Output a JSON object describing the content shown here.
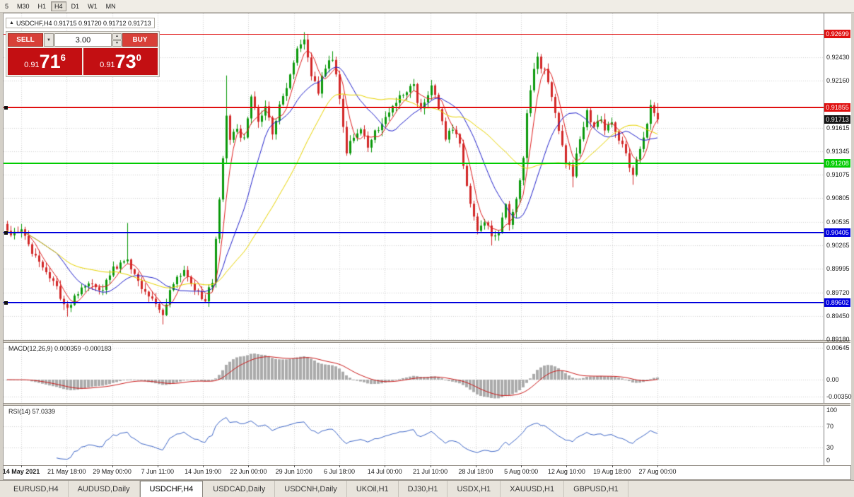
{
  "icons": {
    "trend_arrow": "▲",
    "dropdown_arrow": "▼",
    "spin_up": "▲",
    "spin_down": "▼"
  },
  "toolbar": {
    "timeframes": [
      {
        "label": "5"
      },
      {
        "label": "M30"
      },
      {
        "label": "H1"
      },
      {
        "label": "H4",
        "active": true
      },
      {
        "label": "D1"
      },
      {
        "label": "W1"
      },
      {
        "label": "MN"
      }
    ]
  },
  "symbol_info": {
    "text": "USDCHF,H4 0.91715 0.91720 0.91712 0.91713"
  },
  "trade_panel": {
    "sell_label": "SELL",
    "buy_label": "BUY",
    "volume": "3.00",
    "sell_price": {
      "prefix": "0.91",
      "big": "71",
      "sup": "6"
    },
    "buy_price": {
      "prefix": "0.91",
      "big": "73",
      "sup": "0"
    }
  },
  "chart_data": {
    "type": "candlestick",
    "symbol": "USDCHF",
    "timeframe": "H4",
    "current_price": "0.91713",
    "current_price_value": 0.91713,
    "up_color": "#0c9a0c",
    "down_color": "#d22828",
    "grid_color": "#cfcfcf",
    "price_axis_ticks": [
      {
        "text": "0.92430",
        "price": 0.9243
      },
      {
        "text": "0.92160",
        "price": 0.9216
      },
      {
        "text": "0.91615",
        "price": 0.91615
      },
      {
        "text": "0.91345",
        "price": 0.91345
      },
      {
        "text": "0.91075",
        "price": 0.91075
      },
      {
        "text": "0.90805",
        "price": 0.90805
      },
      {
        "text": "0.90535",
        "price": 0.90535
      },
      {
        "text": "0.90265",
        "price": 0.90265
      },
      {
        "text": "0.89995",
        "price": 0.89995
      },
      {
        "text": "0.89720",
        "price": 0.8972
      },
      {
        "text": "0.89450",
        "price": 0.8945
      },
      {
        "text": "0.89180",
        "price": 0.8918
      }
    ],
    "hlines": [
      {
        "price": 0.92699,
        "label": "0.92699",
        "color": "#e01010",
        "type": "resistance",
        "weight": 1,
        "marker": false
      },
      {
        "price": 0.91855,
        "label": "0.91855",
        "color": "#e01010",
        "type": "resistance",
        "weight": 2,
        "marker": true
      },
      {
        "price": 0.91208,
        "label": "0.91208",
        "color": "#00cc00",
        "type": "support",
        "weight": 2,
        "marker": false
      },
      {
        "price": 0.90405,
        "label": "0.90405",
        "color": "#0000dd",
        "type": "support",
        "weight": 2,
        "marker": true
      },
      {
        "price": 0.89602,
        "label": "0.89602",
        "color": "#0000dd",
        "type": "support",
        "weight": 2,
        "marker": true
      }
    ],
    "time_labels": [
      "14 May 2021",
      "21 May 18:00",
      "29 May 00:00",
      "7 Jun 11:00",
      "14 Jun 19:00",
      "22 Jun 00:00",
      "29 Jun 10:00",
      "6 Jul 18:00",
      "14 Jul 00:00",
      "21 Jul 10:00",
      "28 Jul 18:00",
      "5 Aug 00:00",
      "12 Aug 10:00",
      "19 Aug 18:00",
      "27 Aug 00:00"
    ],
    "candles_count": 185,
    "price_path": [
      [
        0,
        0.904
      ],
      [
        4,
        0.9045
      ],
      [
        8,
        0.901
      ],
      [
        12,
        0.8992
      ],
      [
        17,
        0.8952
      ],
      [
        20,
        0.897
      ],
      [
        23,
        0.8985
      ],
      [
        26,
        0.8972
      ],
      [
        30,
        0.8998
      ],
      [
        34,
        0.901
      ],
      [
        36,
        0.8992
      ],
      [
        40,
        0.8968
      ],
      [
        44,
        0.8948
      ],
      [
        47,
        0.8985
      ],
      [
        50,
        0.8995
      ],
      [
        53,
        0.8975
      ],
      [
        56,
        0.8963
      ],
      [
        58,
        0.8985
      ],
      [
        60,
        0.908
      ],
      [
        62,
        0.9175
      ],
      [
        63,
        0.915
      ],
      [
        65,
        0.916
      ],
      [
        67,
        0.9148
      ],
      [
        69,
        0.9195
      ],
      [
        71,
        0.917
      ],
      [
        73,
        0.919
      ],
      [
        75,
        0.9158
      ],
      [
        77,
        0.919
      ],
      [
        80,
        0.922
      ],
      [
        82,
        0.925
      ],
      [
        84,
        0.9266
      ],
      [
        86,
        0.9225
      ],
      [
        88,
        0.9205
      ],
      [
        90,
        0.923
      ],
      [
        92,
        0.9243
      ],
      [
        94,
        0.9195
      ],
      [
        96,
        0.9135
      ],
      [
        98,
        0.915
      ],
      [
        100,
        0.9162
      ],
      [
        102,
        0.914
      ],
      [
        104,
        0.9155
      ],
      [
        106,
        0.917
      ],
      [
        108,
        0.918
      ],
      [
        110,
        0.919
      ],
      [
        112,
        0.92
      ],
      [
        115,
        0.9208
      ],
      [
        117,
        0.918
      ],
      [
        119,
        0.9195
      ],
      [
        120,
        0.921
      ],
      [
        123,
        0.917
      ],
      [
        124,
        0.9152
      ],
      [
        127,
        0.9158
      ],
      [
        129,
        0.912
      ],
      [
        131,
        0.907
      ],
      [
        133,
        0.9045
      ],
      [
        135,
        0.9055
      ],
      [
        137,
        0.9035
      ],
      [
        139,
        0.9045
      ],
      [
        141,
        0.9075
      ],
      [
        142,
        0.9052
      ],
      [
        144,
        0.908
      ],
      [
        146,
        0.913
      ],
      [
        147,
        0.9175
      ],
      [
        149,
        0.923
      ],
      [
        150,
        0.924
      ],
      [
        152,
        0.9225
      ],
      [
        154,
        0.92
      ],
      [
        156,
        0.916
      ],
      [
        158,
        0.9125
      ],
      [
        160,
        0.9108
      ],
      [
        162,
        0.915
      ],
      [
        164,
        0.9183
      ],
      [
        166,
        0.916
      ],
      [
        168,
        0.9175
      ],
      [
        169,
        0.9155
      ],
      [
        171,
        0.917
      ],
      [
        173,
        0.915
      ],
      [
        175,
        0.913
      ],
      [
        177,
        0.911
      ],
      [
        179,
        0.9135
      ],
      [
        181,
        0.9165
      ],
      [
        182,
        0.9185
      ],
      [
        184,
        0.91713
      ]
    ],
    "spikes": [
      {
        "i": 17,
        "l": 0.8944
      },
      {
        "i": 34,
        "h": 0.9052
      },
      {
        "i": 44,
        "l": 0.8935
      },
      {
        "i": 62,
        "h": 0.9222
      },
      {
        "i": 84,
        "h": 0.9272
      },
      {
        "i": 92,
        "h": 0.925
      },
      {
        "i": 115,
        "h": 0.9218
      },
      {
        "i": 137,
        "l": 0.9026
      },
      {
        "i": 150,
        "h": 0.9248
      },
      {
        "i": 160,
        "l": 0.9093
      },
      {
        "i": 177,
        "l": 0.9096
      },
      {
        "i": 182,
        "h": 0.9194
      },
      {
        "i": 184,
        "h": 0.919
      }
    ],
    "moving_averages": [
      {
        "period": 5,
        "color": "#e02020"
      },
      {
        "period": 15,
        "color": "#2222cc"
      },
      {
        "period": 32,
        "color": "#e8d400"
      }
    ]
  },
  "macd_panel": {
    "label": "MACD(12,26,9) 0.000359 -0.000183",
    "histogram_color": "#ababab",
    "signal_color": "#cc2020",
    "axis_labels": [
      {
        "text": "0.00645",
        "value": 0.00645
      },
      {
        "text": "0.00",
        "value": 0
      },
      {
        "text": "-0.00350",
        "value": -0.0035
      }
    ]
  },
  "rsi_panel": {
    "label": "RSI(14) 57.0339",
    "line_color": "#4068c8",
    "levels": [
      70,
      30
    ],
    "axis_labels": [
      {
        "text": "100",
        "value": 100
      },
      {
        "text": "70",
        "value": 70
      },
      {
        "text": "30",
        "value": 30
      },
      {
        "text": "0",
        "value": 0
      }
    ]
  },
  "tabs": [
    {
      "label": "EURUSD,H4"
    },
    {
      "label": "AUDUSD,Daily"
    },
    {
      "label": "USDCHF,H4",
      "active": true
    },
    {
      "label": "USDCAD,Daily"
    },
    {
      "label": "USDCNH,Daily"
    },
    {
      "label": "UKOil,H1"
    },
    {
      "label": "DJ30,H1"
    },
    {
      "label": "USDX,H1"
    },
    {
      "label": "XAUUSD,H1"
    },
    {
      "label": "GBPUSD,H1"
    }
  ]
}
